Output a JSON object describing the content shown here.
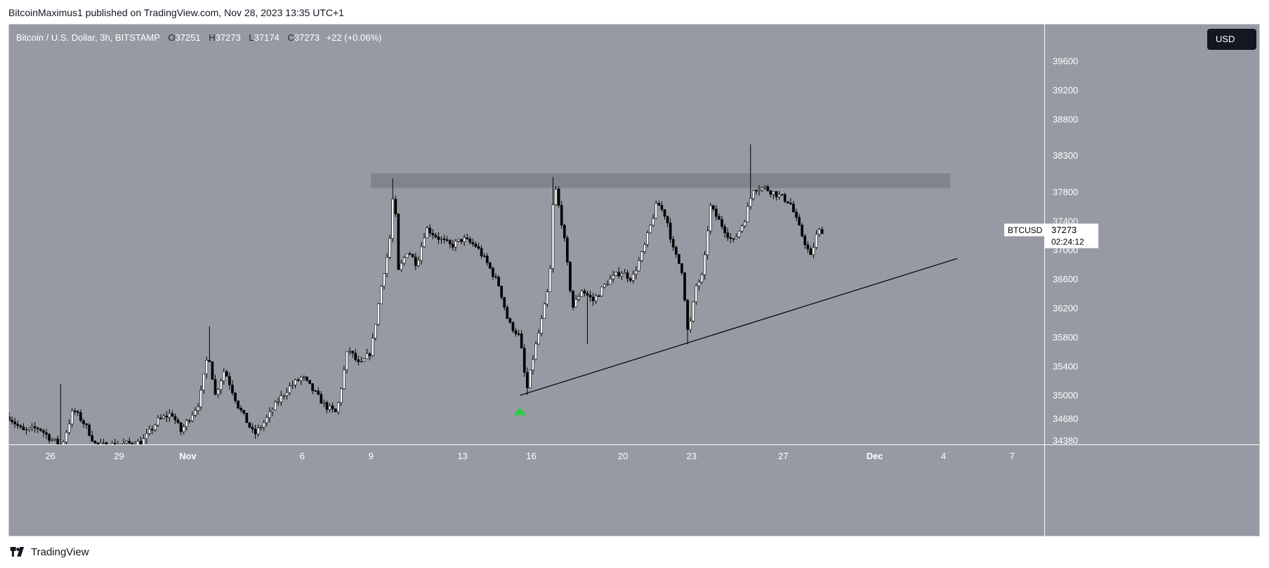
{
  "header": {
    "publisher_line": "BitcoinMaximus1 published on TradingView.com, Nov 28, 2023 13:35 UTC+1"
  },
  "legend": {
    "symbol": "Bitcoin / U.S. Dollar, 3h, BITSTAMP",
    "o_label": "O",
    "o": "37251",
    "h_label": "H",
    "h": "37273",
    "l_label": "L",
    "l": "37174",
    "c_label": "C",
    "c": "37273",
    "change": "+22 (+0.06%)"
  },
  "currency_button": "USD",
  "price_tag": {
    "symbol": "BTCUSD",
    "price": "37273",
    "countdown": "02:24:12"
  },
  "brand": "TradingView",
  "colors": {
    "background": "#979aa3",
    "candle_up": "#ffffff",
    "candle_down": "#000000",
    "resistance_zone": "#7d8088",
    "buy_marker": "#2ecc40"
  },
  "chart_data": {
    "type": "candlestick",
    "title": "Bitcoin / U.S. Dollar, 3h, BITSTAMP",
    "x_tick_labels": [
      {
        "label": "26",
        "day": -6
      },
      {
        "label": "29",
        "day": -3
      },
      {
        "label": "Nov",
        "day": 0
      },
      {
        "label": "6",
        "day": 5
      },
      {
        "label": "9",
        "day": 8
      },
      {
        "label": "13",
        "day": 12
      },
      {
        "label": "16",
        "day": 15
      },
      {
        "label": "20",
        "day": 19
      },
      {
        "label": "23",
        "day": 22
      },
      {
        "label": "27",
        "day": 26
      },
      {
        "label": "Dec",
        "day": 30
      },
      {
        "label": "4",
        "day": 33
      },
      {
        "label": "7",
        "day": 36
      }
    ],
    "y_ticks": [
      34380,
      34680,
      35000,
      35400,
      35800,
      36200,
      36600,
      37000,
      37400,
      37800,
      38300,
      38800,
      39200,
      39600
    ],
    "ylim": [
      34320,
      40100
    ],
    "xlim_days": [
      -7.8,
      37.4
    ],
    "anchors": [
      [
        -7.8,
        34700
      ],
      [
        -7.2,
        34500
      ],
      [
        -6.5,
        34550
      ],
      [
        -6,
        34400
      ],
      [
        -5.5,
        34300
      ],
      [
        -5,
        34800
      ],
      [
        -4.5,
        34600
      ],
      [
        -4,
        34300
      ],
      [
        -3,
        34320
      ],
      [
        -2,
        34350
      ],
      [
        -1.3,
        34650
      ],
      [
        -0.7,
        34750
      ],
      [
        -0.3,
        34500
      ],
      [
        0.5,
        34900
      ],
      [
        0.9,
        35600
      ],
      [
        1.2,
        35000
      ],
      [
        1.6,
        35350
      ],
      [
        2.2,
        34850
      ],
      [
        2.9,
        34450
      ],
      [
        3.4,
        34650
      ],
      [
        3.9,
        34900
      ],
      [
        4.4,
        35100
      ],
      [
        5.0,
        35250
      ],
      [
        5.5,
        35050
      ],
      [
        6.0,
        34850
      ],
      [
        6.5,
        34750
      ],
      [
        7.0,
        35650
      ],
      [
        7.5,
        35400
      ],
      [
        8.0,
        35600
      ],
      [
        8.5,
        36600
      ],
      [
        8.8,
        37050
      ],
      [
        9.0,
        37900
      ],
      [
        9.2,
        36700
      ],
      [
        9.6,
        37000
      ],
      [
        10.0,
        36800
      ],
      [
        10.4,
        37300
      ],
      [
        11.0,
        37150
      ],
      [
        11.5,
        37050
      ],
      [
        12.0,
        37150
      ],
      [
        12.6,
        37050
      ],
      [
        13.1,
        36800
      ],
      [
        13.6,
        36500
      ],
      [
        14.0,
        36000
      ],
      [
        14.5,
        35800
      ],
      [
        14.8,
        35050
      ],
      [
        15.1,
        35550
      ],
      [
        15.4,
        35950
      ],
      [
        15.8,
        36550
      ],
      [
        16.0,
        37950
      ],
      [
        16.4,
        37250
      ],
      [
        16.8,
        36200
      ],
      [
        17.2,
        36450
      ],
      [
        17.7,
        36300
      ],
      [
        18.3,
        36550
      ],
      [
        18.9,
        36700
      ],
      [
        19.4,
        36600
      ],
      [
        19.9,
        37000
      ],
      [
        20.5,
        37650
      ],
      [
        20.9,
        37450
      ],
      [
        21.2,
        37000
      ],
      [
        21.6,
        36700
      ],
      [
        21.85,
        35800
      ],
      [
        22.2,
        36500
      ],
      [
        22.5,
        36650
      ],
      [
        22.8,
        37600
      ],
      [
        23.3,
        37350
      ],
      [
        23.8,
        37100
      ],
      [
        24.3,
        37400
      ],
      [
        24.7,
        37850
      ],
      [
        25.2,
        37850
      ],
      [
        25.8,
        37750
      ],
      [
        26.3,
        37650
      ],
      [
        26.7,
        37300
      ],
      [
        27.2,
        36900
      ],
      [
        27.5,
        37250
      ],
      [
        27.8,
        37273
      ]
    ],
    "spikes": [
      {
        "day": 9.0,
        "high": 37980
      },
      {
        "day": 14.8,
        "low": 35000
      },
      {
        "day": 16.0,
        "high": 38000
      },
      {
        "day": 21.85,
        "low": 35700
      },
      {
        "day": 24.6,
        "high": 38450
      },
      {
        "day": -5.5,
        "high": 35150
      },
      {
        "day": 1.0,
        "high": 35950
      },
      {
        "day": 17.5,
        "low": 35700
      }
    ],
    "resistance_zone": {
      "day_start": 8.0,
      "day_end": 33.3,
      "price_low": 37850,
      "price_high": 38050
    },
    "support_line": [
      {
        "day": 14.5,
        "price": 34995
      },
      {
        "day": 33.6,
        "price": 36880
      }
    ],
    "markers": [
      {
        "type": "buy-arrow",
        "day": 14.5,
        "price": 34780
      }
    ]
  }
}
